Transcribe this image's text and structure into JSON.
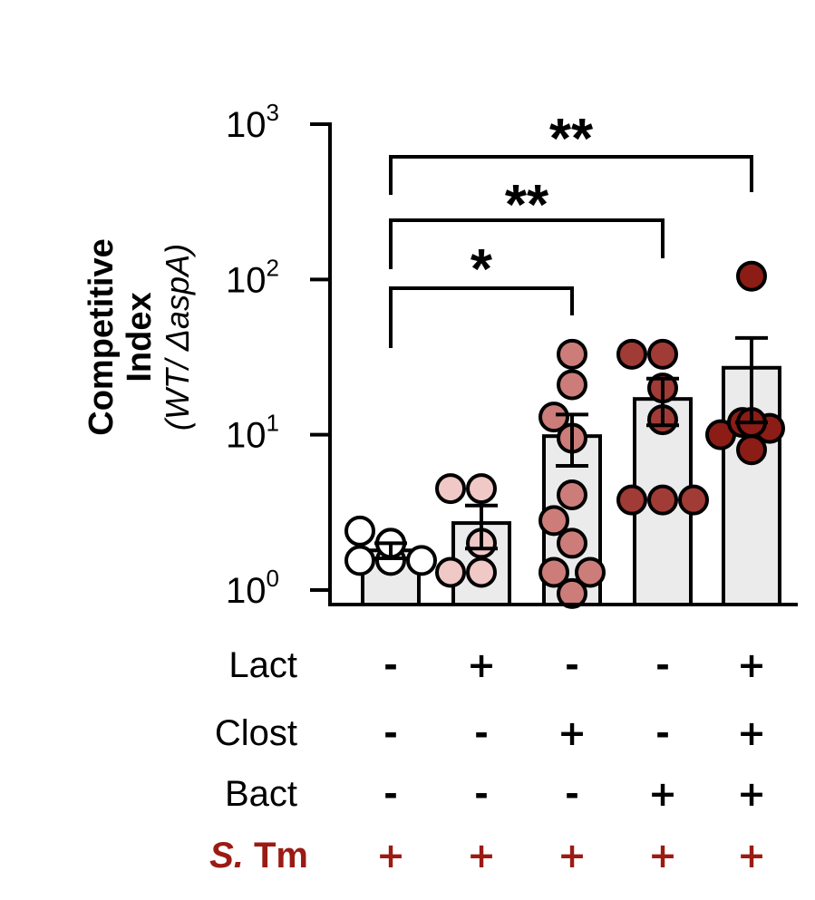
{
  "chart_data": {
    "type": "bar",
    "y_scale": "log",
    "ylim": [
      1,
      1000
    ],
    "yticks": [
      {
        "value": 1,
        "base": "10",
        "exp": "0"
      },
      {
        "value": 10,
        "base": "10",
        "exp": "1"
      },
      {
        "value": 100,
        "base": "10",
        "exp": "2"
      },
      {
        "value": 1000,
        "base": "10",
        "exp": "3"
      }
    ],
    "ylabel_line1": "Competitive",
    "ylabel_line2": "Index",
    "ylabel_line3": "(WT/ ΔaspA)",
    "groups": [
      {
        "mean": 1.8,
        "sem_low": 1.6,
        "sem_high": 2.0,
        "color": "#ffffff",
        "points": [
          1.55,
          1.55,
          1.55,
          2.0,
          2.0,
          2.4
        ]
      },
      {
        "mean": 2.7,
        "sem_low": 1.85,
        "sem_high": 3.5,
        "color": "#f0c8c6",
        "points": [
          1.3,
          1.3,
          2.0,
          4.5,
          4.5
        ]
      },
      {
        "mean": 9.8,
        "sem_low": 6.3,
        "sem_high": 13.5,
        "color": "#cc7d7a",
        "points": [
          0.95,
          1.3,
          1.3,
          2.0,
          2.8,
          4.1,
          9.5,
          13,
          21,
          33
        ]
      },
      {
        "mean": 17,
        "sem_low": 11.5,
        "sem_high": 23,
        "color": "#a03b36",
        "points": [
          3.8,
          3.8,
          3.8,
          12.5,
          20,
          33,
          33
        ]
      },
      {
        "mean": 27,
        "sem_low": 12,
        "sem_high": 42,
        "color": "#8b1c16",
        "points": [
          8,
          10,
          11,
          12,
          12,
          105
        ]
      }
    ],
    "comparisons": [
      {
        "from": 0,
        "to": 2,
        "label": "*"
      },
      {
        "from": 0,
        "to": 3,
        "label": "**"
      },
      {
        "from": 0,
        "to": 4,
        "label": "**"
      }
    ],
    "conditions": [
      {
        "label": "Lact",
        "signs": [
          "-",
          "+",
          "-",
          "-",
          "+"
        ]
      },
      {
        "label": "Clost",
        "signs": [
          "-",
          "-",
          "+",
          "-",
          "+"
        ]
      },
      {
        "label": "Bact",
        "signs": [
          "-",
          "-",
          "-",
          "+",
          "+"
        ]
      }
    ],
    "infection_row": {
      "label_italic": "S.",
      "label_rest": " Tm",
      "signs": [
        "+",
        "+",
        "+",
        "+",
        "+"
      ],
      "color": "#9b1b14"
    },
    "bar_fill": "#ebebeb"
  }
}
